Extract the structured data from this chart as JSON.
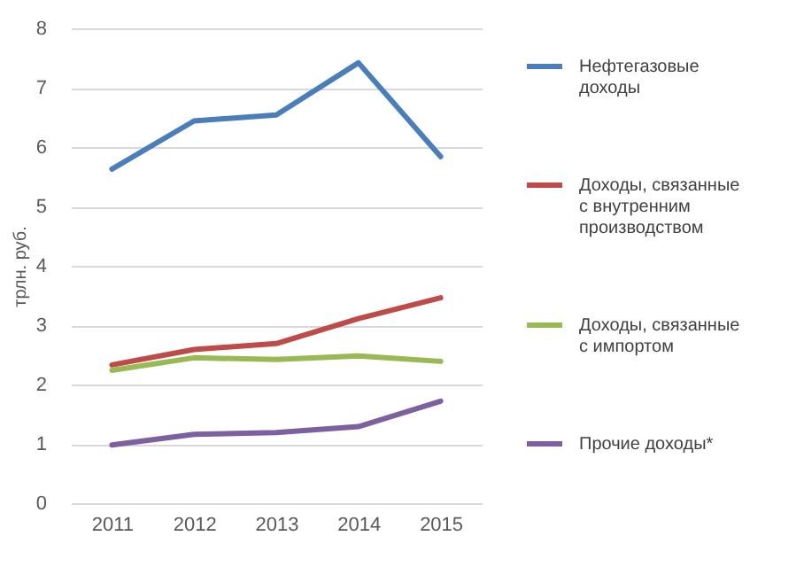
{
  "chart_data": {
    "type": "line",
    "ylabel": "трлн. руб.",
    "categories": [
      "2011",
      "2012",
      "2013",
      "2014",
      "2015"
    ],
    "series": [
      {
        "name": "Нефтегазовые доходы",
        "color": "#4a7ebb",
        "values": [
          5.63,
          6.44,
          6.54,
          7.42,
          5.84
        ]
      },
      {
        "name": "Доходы, связанные с внутренним производством",
        "color": "#be4b48",
        "values": [
          2.33,
          2.59,
          2.69,
          3.11,
          3.46
        ]
      },
      {
        "name": "Доходы, связанные с импортом",
        "color": "#98b954",
        "values": [
          2.24,
          2.45,
          2.42,
          2.48,
          2.39
        ]
      },
      {
        "name": "Прочие доходы*",
        "color": "#7d60a0",
        "values": [
          0.98,
          1.16,
          1.19,
          1.29,
          1.72
        ]
      }
    ],
    "ylim": [
      0,
      8
    ],
    "yticks": [
      0,
      1,
      2,
      3,
      4,
      5,
      6,
      7,
      8
    ],
    "grid": "y",
    "legend": "right",
    "marker": "none",
    "line_style": "solid"
  }
}
